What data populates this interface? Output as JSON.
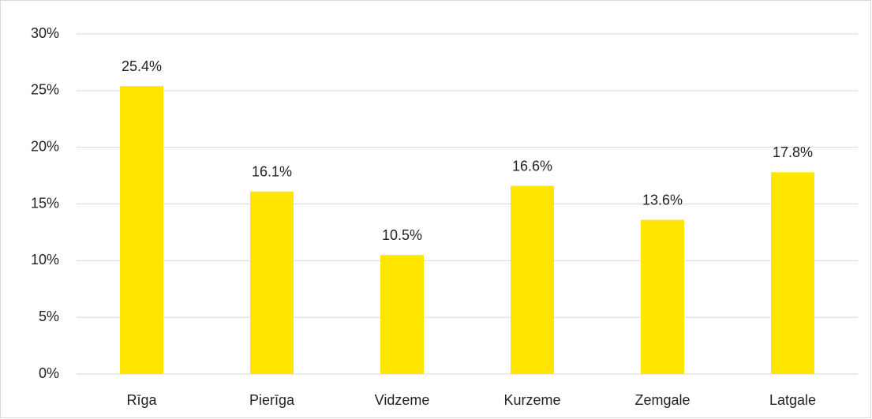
{
  "chart_data": {
    "type": "bar",
    "categories": [
      "Rīga",
      "Pierīga",
      "Vidzeme",
      "Kurzeme",
      "Zemgale",
      "Latgale"
    ],
    "values": [
      25.4,
      16.1,
      10.5,
      16.6,
      13.6,
      17.8
    ],
    "value_labels": [
      "25.4%",
      "16.1%",
      "10.5%",
      "16.6%",
      "13.6%",
      "17.8%"
    ],
    "color": "#ffe600",
    "ylim": [
      0,
      30
    ],
    "yticks": [
      {
        "value": 0,
        "label": "0%"
      },
      {
        "value": 5,
        "label": "5%"
      },
      {
        "value": 10,
        "label": "10%"
      },
      {
        "value": 15,
        "label": "15%"
      },
      {
        "value": 20,
        "label": "20%"
      },
      {
        "value": 25,
        "label": "25%"
      },
      {
        "value": 30,
        "label": "30%"
      }
    ],
    "grid": true
  }
}
